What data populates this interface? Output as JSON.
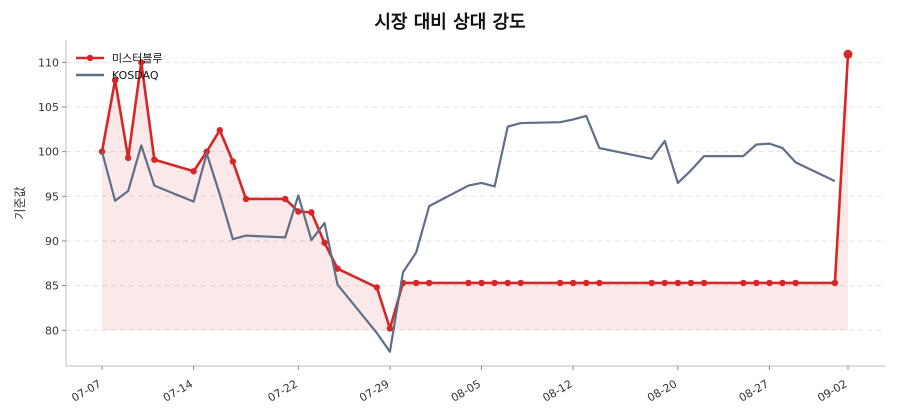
{
  "chart_data": {
    "type": "line",
    "title": "시장 대비 상대 강도",
    "xlabel": "",
    "ylabel": "기준값",
    "ylim": [
      76,
      112.5
    ],
    "yticks": [
      80,
      85,
      90,
      95,
      100,
      105,
      110
    ],
    "grid": true,
    "legend_position": "top-left",
    "x": [
      "07-07",
      "07-08",
      "07-09",
      "07-10",
      "07-11",
      "07-12",
      "07-13",
      "07-14",
      "07-15",
      "07-16",
      "07-17",
      "07-18",
      "07-19",
      "07-20",
      "07-21",
      "07-22",
      "07-23",
      "07-24",
      "07-25",
      "07-26",
      "07-27",
      "07-28",
      "07-29",
      "07-30",
      "07-31",
      "08-01",
      "08-02",
      "08-03",
      "08-04",
      "08-05",
      "08-06",
      "08-07",
      "08-08",
      "08-09",
      "08-10",
      "08-11",
      "08-12",
      "08-13",
      "08-14",
      "08-15",
      "08-16",
      "08-17",
      "08-18",
      "08-19",
      "08-20",
      "08-21",
      "08-22",
      "08-23",
      "08-24",
      "08-25",
      "08-26",
      "08-27",
      "08-28",
      "08-29",
      "08-30",
      "08-31",
      "09-01",
      "09-02"
    ],
    "xtick_labels": [
      "07-07",
      "07-14",
      "07-22",
      "07-29",
      "08-05",
      "08-12",
      "08-20",
      "08-27",
      "09-02"
    ],
    "series": [
      {
        "name": "미스터블루",
        "color": "#d62728",
        "fill": true,
        "markers": true,
        "points": [
          [
            "07-07",
            100.0
          ],
          [
            "07-08",
            108.0
          ],
          [
            "07-09",
            99.3
          ],
          [
            "07-10",
            110.0
          ],
          [
            "07-11",
            99.1
          ],
          [
            "07-14",
            97.8
          ],
          [
            "07-15",
            100.0
          ],
          [
            "07-16",
            102.4
          ],
          [
            "07-17",
            98.9
          ],
          [
            "07-18",
            94.7
          ],
          [
            "07-21",
            94.7
          ],
          [
            "07-22",
            93.3
          ],
          [
            "07-23",
            93.2
          ],
          [
            "07-24",
            89.8
          ],
          [
            "07-25",
            86.9
          ],
          [
            "07-28",
            84.8
          ],
          [
            "07-29",
            80.2
          ],
          [
            "07-30",
            85.3
          ],
          [
            "07-31",
            85.3
          ],
          [
            "08-01",
            85.3
          ],
          [
            "08-04",
            85.3
          ],
          [
            "08-05",
            85.3
          ],
          [
            "08-06",
            85.3
          ],
          [
            "08-07",
            85.3
          ],
          [
            "08-08",
            85.3
          ],
          [
            "08-11",
            85.3
          ],
          [
            "08-12",
            85.3
          ],
          [
            "08-13",
            85.3
          ],
          [
            "08-14",
            85.3
          ],
          [
            "08-18",
            85.3
          ],
          [
            "08-19",
            85.3
          ],
          [
            "08-20",
            85.3
          ],
          [
            "08-21",
            85.3
          ],
          [
            "08-22",
            85.3
          ],
          [
            "08-25",
            85.3
          ],
          [
            "08-26",
            85.3
          ],
          [
            "08-27",
            85.3
          ],
          [
            "08-28",
            85.3
          ],
          [
            "08-29",
            85.3
          ],
          [
            "09-01",
            85.3
          ],
          [
            "09-02",
            110.9
          ]
        ]
      },
      {
        "name": "KOSDAQ",
        "color": "#5f6f89",
        "fill": false,
        "markers": false,
        "points": [
          [
            "07-07",
            100.0
          ],
          [
            "07-08",
            94.5
          ],
          [
            "07-09",
            95.6
          ],
          [
            "07-10",
            100.7
          ],
          [
            "07-11",
            96.2
          ],
          [
            "07-14",
            94.4
          ],
          [
            "07-15",
            99.8
          ],
          [
            "07-16",
            95.2
          ],
          [
            "07-17",
            90.2
          ],
          [
            "07-18",
            90.6
          ],
          [
            "07-21",
            90.4
          ],
          [
            "07-22",
            95.1
          ],
          [
            "07-23",
            90.1
          ],
          [
            "07-24",
            92.0
          ],
          [
            "07-25",
            85.1
          ],
          [
            "07-28",
            79.7
          ],
          [
            "07-29",
            77.6
          ],
          [
            "07-30",
            86.5
          ],
          [
            "07-31",
            88.7
          ],
          [
            "08-01",
            93.9
          ],
          [
            "08-04",
            96.2
          ],
          [
            "08-05",
            96.5
          ],
          [
            "08-06",
            96.1
          ],
          [
            "08-07",
            102.8
          ],
          [
            "08-08",
            103.2
          ],
          [
            "08-11",
            103.3
          ],
          [
            "08-12",
            103.6
          ],
          [
            "08-13",
            104.0
          ],
          [
            "08-14",
            100.4
          ],
          [
            "08-18",
            99.2
          ],
          [
            "08-19",
            101.2
          ],
          [
            "08-20",
            96.5
          ],
          [
            "08-21",
            97.9
          ],
          [
            "08-22",
            99.5
          ],
          [
            "08-25",
            99.5
          ],
          [
            "08-26",
            100.8
          ],
          [
            "08-27",
            100.9
          ],
          [
            "08-28",
            100.4
          ],
          [
            "08-29",
            98.8
          ],
          [
            "09-01",
            96.7
          ]
        ]
      }
    ]
  }
}
